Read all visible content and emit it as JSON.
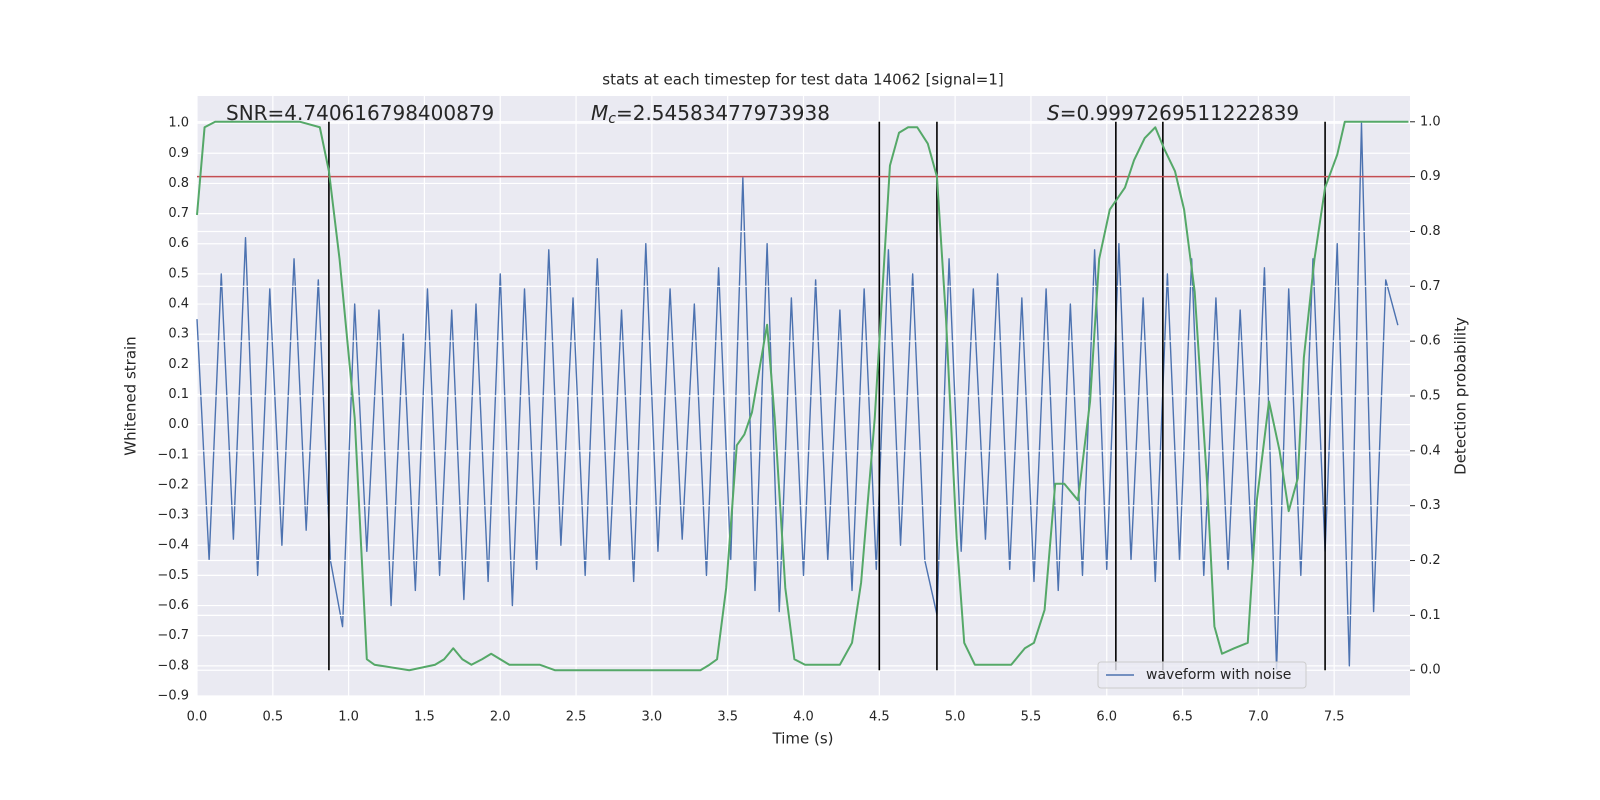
{
  "chart_data": {
    "type": "line",
    "title": "stats at each timestep for test data 14062 [signal=1]",
    "x_label": "Time (s)",
    "y_label": "Whitened strain",
    "y2_label": "Detection probability",
    "annotations": [
      [
        "SNR=4.740616798400879"
      ],
      [
        "M",
        "c",
        "=2.54583477973938"
      ],
      [
        "S",
        "=0.9997269511222839"
      ]
    ],
    "xlim": [
      0,
      8.0
    ],
    "ylim": [
      -0.9,
      1.09
    ],
    "y2lim": [
      -0.047,
      1.047
    ],
    "xticks": [
      {
        "value": 0,
        "label": "0.0"
      },
      {
        "value": 0.5,
        "label": "0.5"
      },
      {
        "value": 1,
        "label": "1.0"
      },
      {
        "value": 1.5,
        "label": "1.5"
      },
      {
        "value": 2,
        "label": "2.0"
      },
      {
        "value": 2.5,
        "label": "2.5"
      },
      {
        "value": 3,
        "label": "3.0"
      },
      {
        "value": 3.5,
        "label": "3.5"
      },
      {
        "value": 4,
        "label": "4.0"
      },
      {
        "value": 4.5,
        "label": "4.5"
      },
      {
        "value": 5,
        "label": "5.0"
      },
      {
        "value": 5.5,
        "label": "5.5"
      },
      {
        "value": 6,
        "label": "6.0"
      },
      {
        "value": 6.5,
        "label": "6.5"
      },
      {
        "value": 7,
        "label": "7.0"
      },
      {
        "value": 7.5,
        "label": "7.5"
      }
    ],
    "yticks": [
      {
        "value": 1,
        "label": "1.0"
      },
      {
        "value": 0.9,
        "label": "0.9"
      },
      {
        "value": 0.8,
        "label": "0.8"
      },
      {
        "value": 0.7,
        "label": "0.7"
      },
      {
        "value": 0.6,
        "label": "0.6"
      },
      {
        "value": 0.5,
        "label": "0.5"
      },
      {
        "value": 0.4,
        "label": "0.4"
      },
      {
        "value": 0.3,
        "label": "0.3"
      },
      {
        "value": 0.2,
        "label": "0.2"
      },
      {
        "value": 0.1,
        "label": "0.1"
      },
      {
        "value": 0,
        "label": "0.0"
      },
      {
        "value": -0.1,
        "label": "−0.1"
      },
      {
        "value": -0.2,
        "label": "−0.2"
      },
      {
        "value": -0.3,
        "label": "−0.3"
      },
      {
        "value": -0.4,
        "label": "−0.4"
      },
      {
        "value": -0.5,
        "label": "−0.5"
      },
      {
        "value": -0.6,
        "label": "−0.6"
      },
      {
        "value": -0.7,
        "label": "−0.7"
      },
      {
        "value": -0.8,
        "label": "−0.8"
      },
      {
        "value": -0.9,
        "label": "−0.9"
      }
    ],
    "y2ticks": [
      {
        "value": 0,
        "label": "0.0"
      },
      {
        "value": 0.1,
        "label": "0.1"
      },
      {
        "value": 0.2,
        "label": "0.2"
      },
      {
        "value": 0.3,
        "label": "0.3"
      },
      {
        "value": 0.4,
        "label": "0.4"
      },
      {
        "value": 0.5,
        "label": "0.5"
      },
      {
        "value": 0.6,
        "label": "0.6"
      },
      {
        "value": 0.7,
        "label": "0.7"
      },
      {
        "value": 0.8,
        "label": "0.8"
      },
      {
        "value": 0.9,
        "label": "0.9"
      },
      {
        "value": 1,
        "label": "1.0"
      }
    ],
    "grid": true,
    "legend": "lower right",
    "series": [
      {
        "name": "waveform with noise",
        "color": "#4c72b0",
        "x": [
          0,
          0.08,
          0.16,
          0.24,
          0.32,
          0.4,
          0.48,
          0.56,
          0.64,
          0.72,
          0.8,
          0.88,
          0.96,
          1.04,
          1.12,
          1.2,
          1.28,
          1.36,
          1.44,
          1.52,
          1.6,
          1.68,
          1.76,
          1.84,
          1.92,
          2,
          2.08,
          2.16,
          2.24,
          2.32,
          2.4,
          2.48,
          2.56,
          2.64,
          2.72,
          2.8,
          2.88,
          2.96,
          3.04,
          3.12,
          3.2,
          3.28,
          3.36,
          3.44,
          3.52,
          3.6,
          3.68,
          3.76,
          3.84,
          3.92,
          4,
          4.08,
          4.16,
          4.24,
          4.32,
          4.4,
          4.48,
          4.56,
          4.64,
          4.72,
          4.8,
          4.88,
          4.96,
          5.04,
          5.12,
          5.2,
          5.28,
          5.36,
          5.44,
          5.52,
          5.6,
          5.68,
          5.76,
          5.84,
          5.92,
          6,
          6.08,
          6.16,
          6.24,
          6.32,
          6.4,
          6.48,
          6.56,
          6.64,
          6.72,
          6.8,
          6.88,
          6.96,
          7.04,
          7.12,
          7.2,
          7.28,
          7.36,
          7.44,
          7.52,
          7.6,
          7.68,
          7.76,
          7.84,
          7.92
        ],
        "values": [
          0.35,
          -0.45,
          0.5,
          -0.38,
          0.62,
          -0.5,
          0.45,
          -0.4,
          0.55,
          -0.35,
          0.48,
          -0.45,
          -0.67,
          0.4,
          -0.42,
          0.38,
          -0.6,
          0.3,
          -0.55,
          0.45,
          -0.5,
          0.38,
          -0.58,
          0.4,
          -0.52,
          0.5,
          -0.6,
          0.45,
          -0.48,
          0.58,
          -0.4,
          0.42,
          -0.5,
          0.55,
          -0.45,
          0.38,
          -0.52,
          0.6,
          -0.42,
          0.45,
          -0.38,
          0.4,
          -0.5,
          0.52,
          -0.45,
          0.82,
          -0.55,
          0.6,
          -0.62,
          0.42,
          -0.5,
          0.48,
          -0.45,
          0.38,
          -0.55,
          0.45,
          -0.48,
          0.58,
          -0.4,
          0.5,
          -0.45,
          -0.63,
          0.55,
          -0.42,
          0.45,
          -0.38,
          0.5,
          -0.48,
          0.42,
          -0.52,
          0.45,
          -0.55,
          0.4,
          -0.5,
          0.58,
          -0.48,
          0.6,
          -0.45,
          0.42,
          -0.52,
          0.5,
          -0.45,
          0.55,
          -0.5,
          0.42,
          -0.48,
          0.38,
          -0.45,
          0.52,
          -0.81,
          0.45,
          -0.5,
          0.55,
          -0.42,
          0.6,
          -0.8,
          1.0,
          -0.62,
          0.48,
          0.33
        ]
      },
      {
        "color": "#55a868",
        "axis": "y2",
        "x": [
          0,
          0.05,
          0.12,
          0.68,
          0.81,
          0.87,
          0.94,
          1.04,
          1.12,
          1.17,
          1.4,
          1.57,
          1.63,
          1.69,
          1.75,
          1.81,
          1.88,
          1.94,
          2,
          2.06,
          2.13,
          2.26,
          2.36,
          2.66,
          2.99,
          3.32,
          3.38,
          3.43,
          3.49,
          3.56,
          3.61,
          3.66,
          3.71,
          3.76,
          3.81,
          3.88,
          3.94,
          4.01,
          4.17,
          4.24,
          4.32,
          4.38,
          4.47,
          4.57,
          4.63,
          4.69,
          4.75,
          4.82,
          4.88,
          4.94,
          5.01,
          5.06,
          5.13,
          5.19,
          5.29,
          5.37,
          5.46,
          5.52,
          5.59,
          5.66,
          5.72,
          5.81,
          5.89,
          5.95,
          6.02,
          6.12,
          6.18,
          6.25,
          6.32,
          6.38,
          6.45,
          6.51,
          6.58,
          6.66,
          6.71,
          6.76,
          6.84,
          6.93,
          6.99,
          7.07,
          7.14,
          7.2,
          7.26,
          7.3,
          7.37,
          7.44,
          7.52,
          7.57,
          7.63,
          7.99
        ],
        "values": [
          0.83,
          0.99,
          1.0,
          1.0,
          0.99,
          0.91,
          0.75,
          0.46,
          0.02,
          0.01,
          0.0,
          0.01,
          0.02,
          0.04,
          0.02,
          0.01,
          0.02,
          0.03,
          0.02,
          0.01,
          0.01,
          0.01,
          0.0,
          0.0,
          0.0,
          0.0,
          0.01,
          0.02,
          0.15,
          0.41,
          0.43,
          0.47,
          0.55,
          0.63,
          0.46,
          0.15,
          0.02,
          0.01,
          0.01,
          0.01,
          0.05,
          0.16,
          0.46,
          0.92,
          0.98,
          0.99,
          0.99,
          0.96,
          0.9,
          0.64,
          0.24,
          0.05,
          0.01,
          0.01,
          0.01,
          0.01,
          0.04,
          0.05,
          0.11,
          0.34,
          0.34,
          0.31,
          0.49,
          0.75,
          0.84,
          0.88,
          0.93,
          0.97,
          0.99,
          0.95,
          0.91,
          0.84,
          0.69,
          0.35,
          0.08,
          0.03,
          0.04,
          0.05,
          0.31,
          0.49,
          0.4,
          0.29,
          0.35,
          0.57,
          0.75,
          0.88,
          0.94,
          1.0,
          1.0,
          1.0
        ]
      }
    ],
    "vlines": [
      0.87,
      4.5,
      4.88,
      6.06,
      6.37,
      7.44
    ],
    "vline_span": [
      0,
      1
    ],
    "vline_color": "#000000",
    "threshold": 0.9,
    "threshold_color": "#c44e52",
    "background": "#eaeaf2"
  }
}
